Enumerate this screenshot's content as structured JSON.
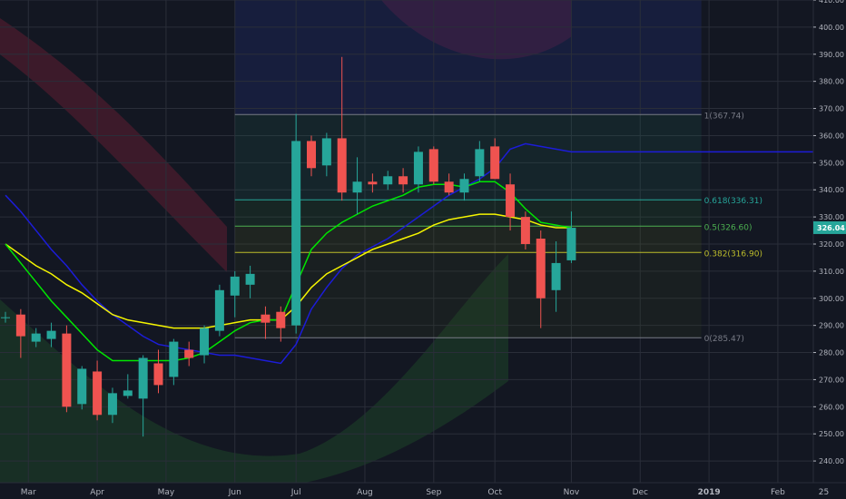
{
  "colors": {
    "background": "#131722",
    "grid": "#2a2e39",
    "axis_text": "#b2b5be",
    "up": "#26a69a",
    "down": "#ef5350",
    "ma_fast": "#00e600",
    "ma_mid": "#f5f500",
    "ma_slow": "#1c1cd8",
    "fib_line": "#787b86",
    "fib_0618": "#26a69a",
    "fib_05": "#4caf50",
    "fib_0382": "#bdbd2b",
    "price_tag_bg": "#26a69a"
  },
  "chart_data": {
    "type": "candlestick",
    "title": "",
    "ylim": [
      232,
      410
    ],
    "y_ticks": [
      240,
      250,
      260,
      270,
      280,
      290,
      300,
      310,
      320,
      330,
      340,
      350,
      360,
      370,
      380,
      390,
      400,
      410
    ],
    "x_ticks": [
      {
        "label": "Mar",
        "week": 1.5
      },
      {
        "label": "Apr",
        "week": 6
      },
      {
        "label": "May",
        "week": 10.5
      },
      {
        "label": "Jun",
        "week": 15
      },
      {
        "label": "Jul",
        "week": 19
      },
      {
        "label": "Aug",
        "week": 23.5
      },
      {
        "label": "Sep",
        "week": 28
      },
      {
        "label": "Oct",
        "week": 32
      },
      {
        "label": "Nov",
        "week": 37
      },
      {
        "label": "Dec",
        "week": 41.5
      },
      {
        "label": "2019",
        "week": 46
      },
      {
        "label": "Feb",
        "week": 50.5
      },
      {
        "label": "25",
        "week": 53.5
      }
    ],
    "week_count": 55,
    "candles": [
      {
        "o": 293,
        "h": 295,
        "l": 291,
        "c": 293
      },
      {
        "o": 294,
        "h": 296,
        "l": 278,
        "c": 286
      },
      {
        "o": 284,
        "h": 289,
        "l": 282,
        "c": 287
      },
      {
        "o": 285,
        "h": 291,
        "l": 282,
        "c": 288
      },
      {
        "o": 287,
        "h": 290,
        "l": 258,
        "c": 260
      },
      {
        "o": 261,
        "h": 275,
        "l": 259,
        "c": 274
      },
      {
        "o": 273,
        "h": 277,
        "l": 255,
        "c": 257
      },
      {
        "o": 257,
        "h": 267,
        "l": 254,
        "c": 265
      },
      {
        "o": 264,
        "h": 272,
        "l": 263,
        "c": 266
      },
      {
        "o": 263,
        "h": 279,
        "l": 249,
        "c": 278
      },
      {
        "o": 276,
        "h": 281,
        "l": 265,
        "c": 268
      },
      {
        "o": 271,
        "h": 285,
        "l": 268,
        "c": 284
      },
      {
        "o": 281,
        "h": 284,
        "l": 275,
        "c": 278
      },
      {
        "o": 279,
        "h": 290,
        "l": 276,
        "c": 289
      },
      {
        "o": 288,
        "h": 305,
        "l": 286,
        "c": 303
      },
      {
        "o": 301,
        "h": 310,
        "l": 293,
        "c": 308
      },
      {
        "o": 305,
        "h": 312,
        "l": 300,
        "c": 309
      },
      {
        "o": 294,
        "h": 297,
        "l": 285,
        "c": 291
      },
      {
        "o": 295,
        "h": 297,
        "l": 284,
        "c": 289
      },
      {
        "o": 290,
        "h": 368,
        "l": 287,
        "c": 358
      },
      {
        "o": 358,
        "h": 360,
        "l": 345,
        "c": 348
      },
      {
        "o": 349,
        "h": 361,
        "l": 345,
        "c": 359
      },
      {
        "o": 359,
        "h": 389,
        "l": 336,
        "c": 339
      },
      {
        "o": 339,
        "h": 352,
        "l": 331,
        "c": 343
      },
      {
        "o": 343,
        "h": 346,
        "l": 339,
        "c": 342
      },
      {
        "o": 342,
        "h": 347,
        "l": 340,
        "c": 345
      },
      {
        "o": 345,
        "h": 348,
        "l": 339,
        "c": 342
      },
      {
        "o": 342,
        "h": 356,
        "l": 339,
        "c": 354
      },
      {
        "o": 355,
        "h": 356,
        "l": 342,
        "c": 343
      },
      {
        "o": 343,
        "h": 346,
        "l": 338,
        "c": 339
      },
      {
        "o": 339,
        "h": 346,
        "l": 336,
        "c": 344
      },
      {
        "o": 345,
        "h": 358,
        "l": 343,
        "c": 355
      },
      {
        "o": 356,
        "h": 359,
        "l": 344,
        "c": 344
      },
      {
        "o": 342,
        "h": 346,
        "l": 325,
        "c": 330
      },
      {
        "o": 330,
        "h": 332,
        "l": 318,
        "c": 320
      },
      {
        "o": 322,
        "h": 325,
        "l": 289,
        "c": 300
      },
      {
        "o": 303,
        "h": 321,
        "l": 295,
        "c": 313
      },
      {
        "o": 314,
        "h": 332,
        "l": 313,
        "c": 326
      }
    ],
    "ma_fast": [
      320,
      313,
      306,
      299,
      293,
      287,
      281,
      277,
      277,
      277,
      277,
      277,
      278,
      280,
      284,
      288,
      291,
      292,
      292,
      305,
      318,
      324,
      328,
      331,
      334,
      336,
      338,
      341,
      342,
      342,
      341,
      343,
      343,
      339,
      333,
      328,
      327,
      326
    ],
    "ma_mid": [
      320,
      316,
      312,
      309,
      305,
      302,
      298,
      294,
      292,
      291,
      290,
      289,
      289,
      289,
      290,
      291,
      292,
      292,
      292,
      297,
      304,
      309,
      312,
      315,
      318,
      320,
      322,
      324,
      327,
      329,
      330,
      331,
      331,
      330,
      329,
      327,
      326,
      326
    ],
    "ma_slow": [
      338,
      332,
      325,
      318,
      312,
      305,
      299,
      294,
      290,
      286,
      283,
      282,
      281,
      280,
      279,
      279,
      278,
      277,
      276,
      283,
      296,
      304,
      311,
      316,
      319,
      322,
      326,
      330,
      334,
      338,
      341,
      344,
      348,
      355,
      357,
      356,
      355,
      354,
      354,
      354,
      354,
      354,
      354,
      354,
      354,
      354,
      354,
      354,
      354,
      354,
      354,
      354,
      354,
      354,
      354
    ],
    "fibonacci": [
      {
        "label": "1(367.74)",
        "level": 367.74
      },
      {
        "label": "0.618(336.31)",
        "level": 336.31
      },
      {
        "label": "0.5(326.60)",
        "level": 326.6
      },
      {
        "label": "0.382(316.90)",
        "level": 316.9
      },
      {
        "label": "0(285.47)",
        "level": 285.47
      }
    ],
    "fib_week_range": [
      15,
      45.5
    ],
    "last_price": {
      "label": "326.04",
      "value": 326.04
    }
  }
}
